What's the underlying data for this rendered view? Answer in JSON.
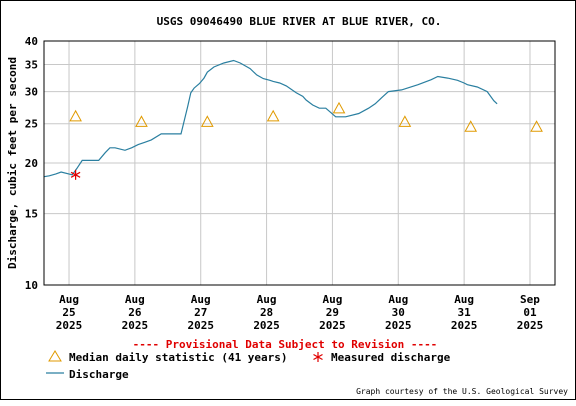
{
  "chart_data": {
    "type": "line",
    "title": "USGS 09046490 BLUE RIVER AT BLUE RIVER, CO.",
    "ylabel": "Discharge, cubic feet per second",
    "xlabel": "",
    "y_scale": "log",
    "ylim": [
      10,
      40
    ],
    "y_ticks": [
      10,
      15,
      20,
      25,
      30,
      35,
      40
    ],
    "x_day_start": "2025-08-25",
    "x_ticks": [
      {
        "l1": "Aug",
        "l2": "25",
        "l3": "2025",
        "day": 0
      },
      {
        "l1": "Aug",
        "l2": "26",
        "l3": "2025",
        "day": 1
      },
      {
        "l1": "Aug",
        "l2": "27",
        "l3": "2025",
        "day": 2
      },
      {
        "l1": "Aug",
        "l2": "28",
        "l3": "2025",
        "day": 3
      },
      {
        "l1": "Aug",
        "l2": "29",
        "l3": "2025",
        "day": 4
      },
      {
        "l1": "Aug",
        "l2": "30",
        "l3": "2025",
        "day": 5
      },
      {
        "l1": "Aug",
        "l2": "31",
        "l3": "2025",
        "day": 6
      },
      {
        "l1": "Sep",
        "l2": "01",
        "l3": "2025",
        "day": 7
      }
    ],
    "xlim_days": [
      -0.38,
      7.38
    ],
    "grid": true,
    "colors": {
      "discharge": "#2a7fa0",
      "median": "#e09a00",
      "measured": "#e00000",
      "grid": "#c8c8c8"
    },
    "series": [
      {
        "name": "Discharge",
        "kind": "line",
        "x_days": [
          -0.38,
          -0.3,
          -0.2,
          -0.12,
          0.05,
          0.12,
          0.2,
          0.3,
          0.45,
          0.55,
          0.62,
          0.7,
          0.85,
          0.95,
          1.05,
          1.15,
          1.25,
          1.4,
          1.5,
          1.55,
          1.7,
          1.8,
          1.85,
          1.9,
          1.98,
          2.05,
          2.1,
          2.2,
          2.35,
          2.5,
          2.6,
          2.75,
          2.85,
          2.95,
          3.05,
          3.1,
          3.2,
          3.3,
          3.45,
          3.55,
          3.6,
          3.7,
          3.8,
          3.9,
          4.05,
          4.2,
          4.4,
          4.55,
          4.65,
          4.75,
          4.85,
          5.05,
          5.3,
          5.5,
          5.6,
          5.75,
          5.9,
          6.0,
          6.05,
          6.2,
          6.35,
          6.45,
          6.5
        ],
        "values": [
          18.5,
          18.6,
          18.8,
          19.0,
          18.7,
          19.4,
          20.3,
          20.3,
          20.3,
          21.2,
          21.8,
          21.8,
          21.5,
          21.8,
          22.2,
          22.5,
          22.8,
          23.6,
          23.6,
          23.6,
          23.6,
          27.5,
          29.8,
          30.6,
          31.4,
          32.4,
          33.5,
          34.5,
          35.3,
          35.8,
          35.3,
          34.2,
          33.0,
          32.3,
          32.0,
          31.8,
          31.5,
          31.0,
          29.8,
          29.2,
          28.6,
          27.8,
          27.3,
          27.3,
          26.0,
          26.0,
          26.5,
          27.3,
          28.0,
          29.0,
          30.0,
          30.3,
          31.2,
          32.1,
          32.7,
          32.4,
          32.0,
          31.5,
          31.2,
          30.8,
          30.0,
          28.5,
          28.0
        ]
      },
      {
        "name": "Median daily statistic (41 years)",
        "kind": "triangle",
        "x_days": [
          0.1,
          1.1,
          2.1,
          3.1,
          4.1,
          5.1,
          6.1,
          7.1
        ],
        "values": [
          26.0,
          25.2,
          25.2,
          26.0,
          27.2,
          25.2,
          24.5,
          24.5
        ]
      },
      {
        "name": "Measured discharge",
        "kind": "star",
        "x_days": [
          0.1
        ],
        "values": [
          18.7
        ]
      }
    ],
    "provisional_note": "---- Provisional Data Subject to Revision ----",
    "legend": {
      "placement": "bottom-left",
      "median_label": "Median daily statistic (41 years)",
      "measured_label": "Measured discharge",
      "discharge_label": "Discharge"
    },
    "credit": "Graph courtesy of the U.S. Geological Survey"
  }
}
